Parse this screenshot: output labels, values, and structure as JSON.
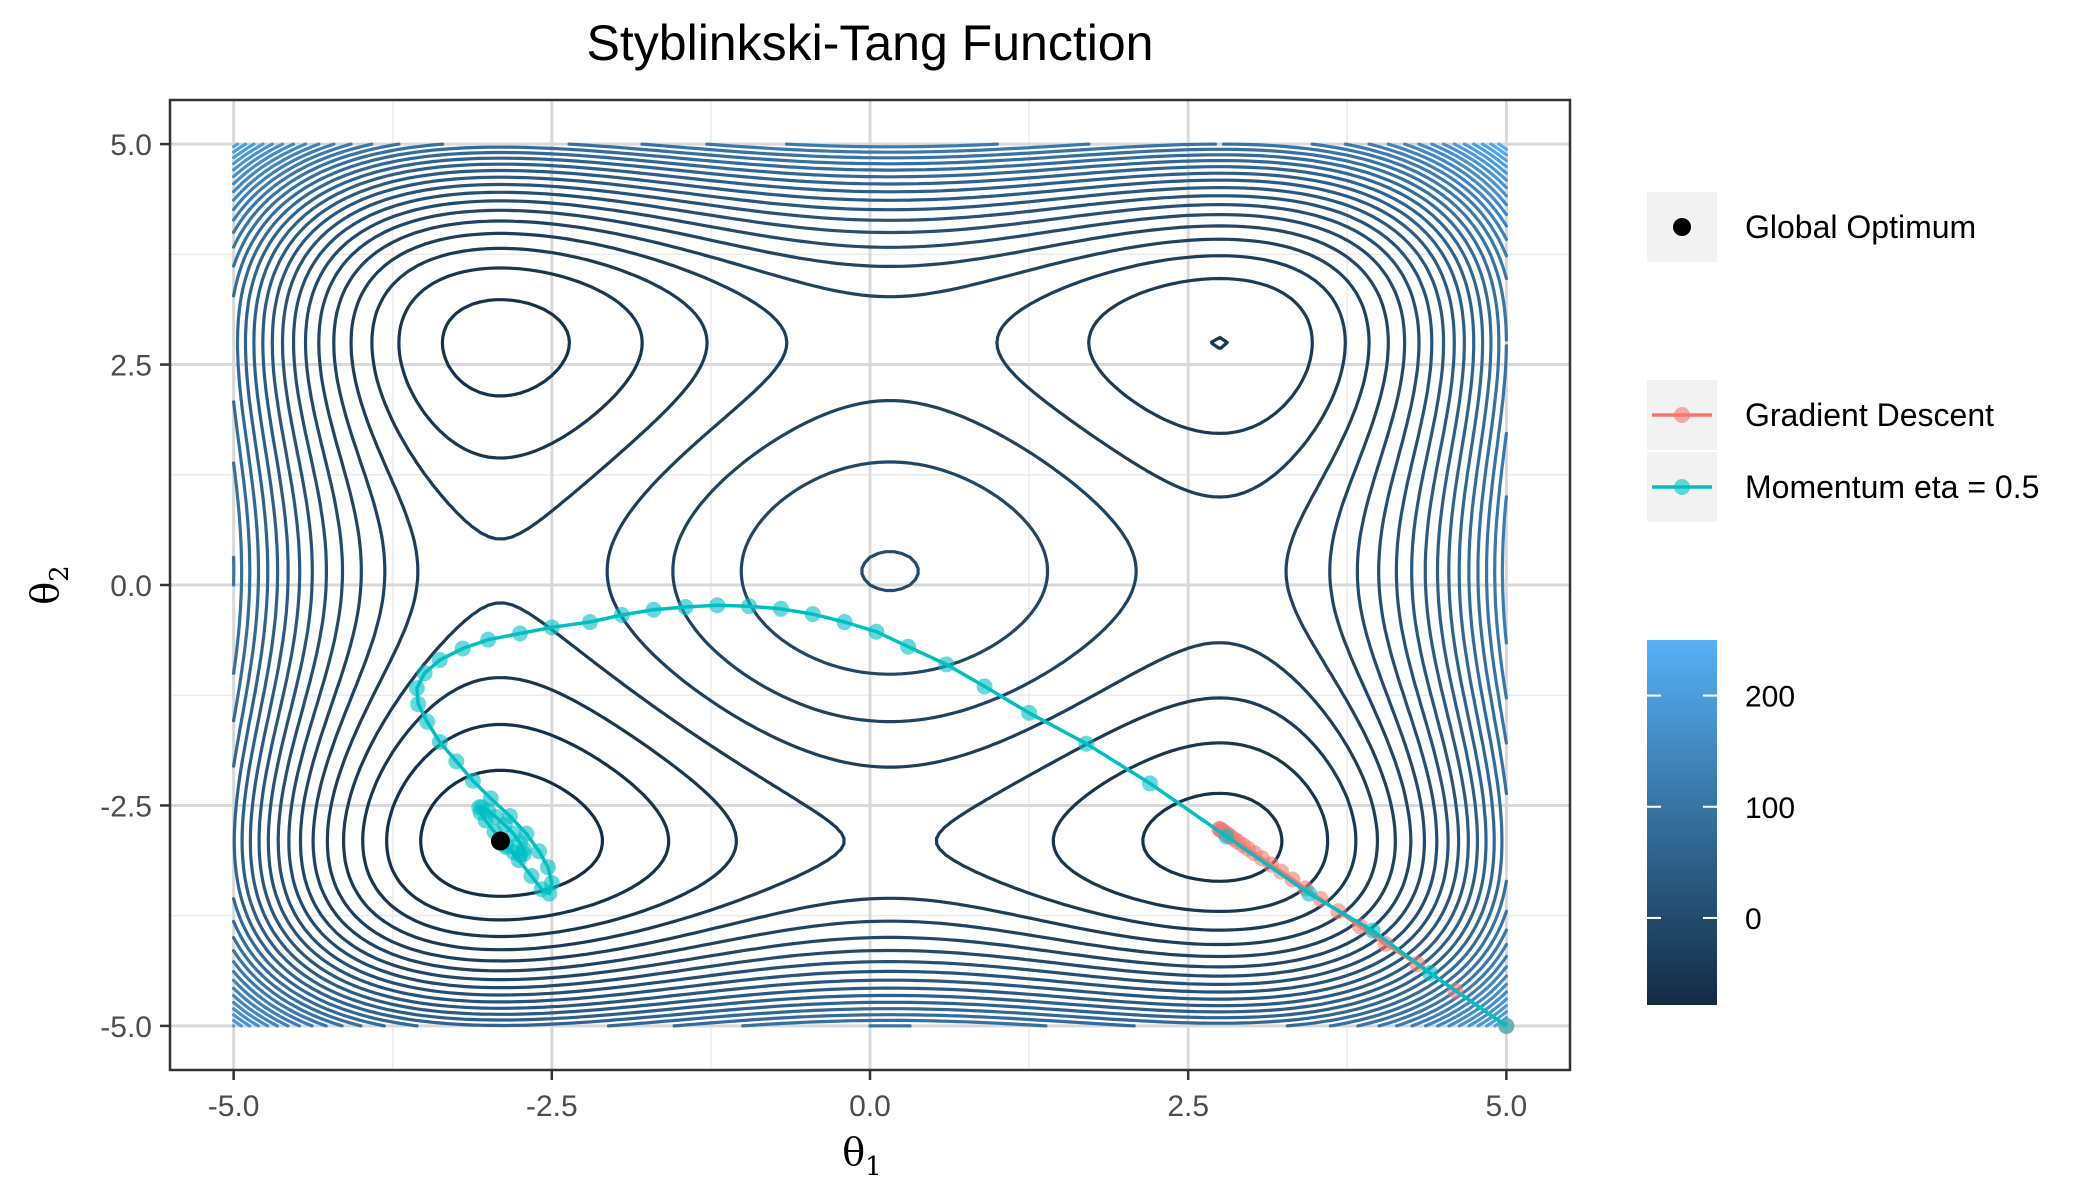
{
  "chart_data": {
    "type": "contour",
    "title": "Styblinkski-Tang Function",
    "xlabel": {
      "base": "θ",
      "sub": "1"
    },
    "ylabel": {
      "base": "θ",
      "sub": "2"
    },
    "xlim": [
      -5.5,
      5.5
    ],
    "ylim": [
      -5.5,
      5.5
    ],
    "x_ticks": [
      "-5.0",
      "-2.5",
      "0.0",
      "2.5",
      "5.0"
    ],
    "y_ticks": [
      "-5.0",
      "-2.5",
      "0.0",
      "2.5",
      "5.0"
    ],
    "x_tick_values": [
      -5,
      -2.5,
      0,
      2.5,
      5
    ],
    "y_tick_values": [
      -5,
      -2.5,
      0,
      2.5,
      5
    ],
    "grid": true,
    "contour_domain": [
      -5,
      5
    ],
    "contour_step": 10,
    "colorbar": {
      "ticks": [
        "200",
        "100",
        "0"
      ],
      "tick_values": [
        200,
        100,
        0
      ],
      "range": [
        -78.3,
        250
      ],
      "low_color": "#132b43",
      "high_color": "#56b1f7"
    },
    "global_optimum": {
      "label": "Global Optimum",
      "x": -2.9035,
      "y": -2.9035,
      "color": "#000000"
    },
    "series": [
      {
        "name": "Gradient Descent",
        "color": "#f8766d",
        "points": [
          [
            5.0,
            -5.0
          ],
          [
            4.6,
            -4.6
          ],
          [
            4.3,
            -4.3
          ],
          [
            4.05,
            -4.07
          ],
          [
            3.85,
            -3.87
          ],
          [
            3.68,
            -3.7
          ],
          [
            3.54,
            -3.56
          ],
          [
            3.42,
            -3.44
          ],
          [
            3.32,
            -3.34
          ],
          [
            3.23,
            -3.25
          ],
          [
            3.15,
            -3.17
          ],
          [
            3.08,
            -3.1
          ],
          [
            3.02,
            -3.04
          ],
          [
            2.97,
            -2.99
          ],
          [
            2.93,
            -2.95
          ],
          [
            2.89,
            -2.91
          ],
          [
            2.86,
            -2.88
          ],
          [
            2.83,
            -2.85
          ],
          [
            2.81,
            -2.83
          ],
          [
            2.79,
            -2.81
          ],
          [
            2.77,
            -2.79
          ],
          [
            2.76,
            -2.78
          ],
          [
            2.75,
            -2.77
          ],
          [
            2.745,
            -2.765
          ]
        ]
      },
      {
        "name": "Momentum eta = 0.5",
        "color": "#00bfc4",
        "points": [
          [
            5.0,
            -5.0
          ],
          [
            4.4,
            -4.4
          ],
          [
            3.95,
            -3.92
          ],
          [
            3.45,
            -3.5
          ],
          [
            2.8,
            -2.85
          ],
          [
            2.2,
            -2.25
          ],
          [
            1.7,
            -1.8
          ],
          [
            1.25,
            -1.45
          ],
          [
            0.9,
            -1.15
          ],
          [
            0.6,
            -0.9
          ],
          [
            0.3,
            -0.7
          ],
          [
            0.05,
            -0.53
          ],
          [
            -0.2,
            -0.42
          ],
          [
            -0.45,
            -0.33
          ],
          [
            -0.7,
            -0.27
          ],
          [
            -0.95,
            -0.24
          ],
          [
            -1.2,
            -0.23
          ],
          [
            -1.45,
            -0.25
          ],
          [
            -1.7,
            -0.28
          ],
          [
            -1.95,
            -0.34
          ],
          [
            -2.2,
            -0.42
          ],
          [
            -2.5,
            -0.48
          ],
          [
            -2.75,
            -0.55
          ],
          [
            -3.0,
            -0.62
          ],
          [
            -3.2,
            -0.72
          ],
          [
            -3.38,
            -0.85
          ],
          [
            -3.5,
            -1.0
          ],
          [
            -3.56,
            -1.17
          ],
          [
            -3.55,
            -1.35
          ],
          [
            -3.48,
            -1.55
          ],
          [
            -3.38,
            -1.78
          ],
          [
            -3.25,
            -2.0
          ],
          [
            -3.12,
            -2.22
          ],
          [
            -2.98,
            -2.42
          ],
          [
            -2.83,
            -2.62
          ],
          [
            -2.7,
            -2.82
          ],
          [
            -2.6,
            -3.02
          ],
          [
            -2.53,
            -3.2
          ],
          [
            -2.5,
            -3.38
          ],
          [
            -2.52,
            -3.5
          ],
          [
            -2.58,
            -3.45
          ],
          [
            -2.66,
            -3.3
          ],
          [
            -2.76,
            -3.12
          ],
          [
            -2.86,
            -2.95
          ],
          [
            -2.95,
            -2.8
          ],
          [
            -3.02,
            -2.67
          ],
          [
            -3.06,
            -2.58
          ],
          [
            -3.07,
            -2.52
          ],
          [
            -3.05,
            -2.52
          ],
          [
            -3.0,
            -2.56
          ],
          [
            -2.94,
            -2.63
          ],
          [
            -2.87,
            -2.72
          ],
          [
            -2.8,
            -2.82
          ],
          [
            -2.75,
            -2.92
          ],
          [
            -2.72,
            -3.0
          ],
          [
            -2.72,
            -3.05
          ],
          [
            -2.75,
            -3.06
          ],
          [
            -2.8,
            -3.03
          ],
          [
            -2.86,
            -2.97
          ],
          [
            -2.9,
            -2.92
          ]
        ]
      }
    ]
  }
}
